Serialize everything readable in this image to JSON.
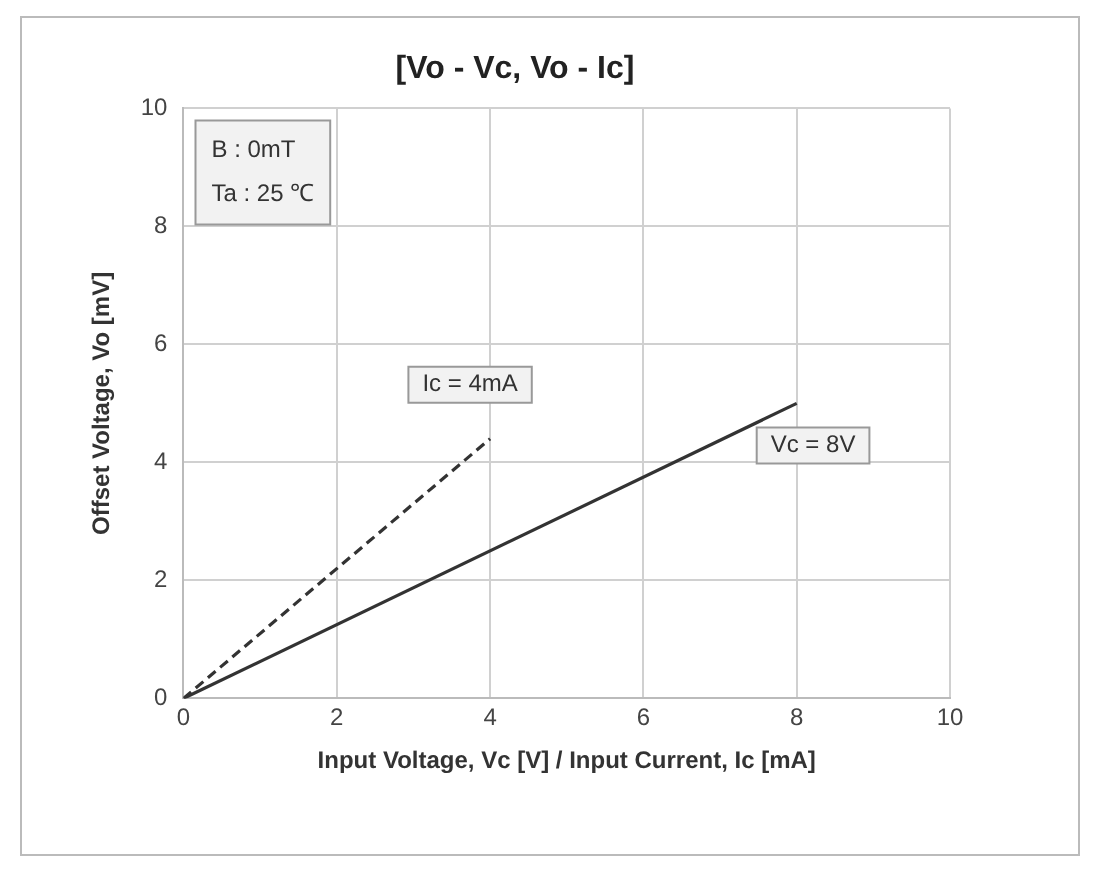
{
  "chart_data": {
    "type": "line",
    "title": "[Vo - Vc, Vo - Ic]",
    "xlabel": "Input Voltage, Vc [V] / Input Current, Ic [mA]",
    "ylabel": "Offset Voltage, Vo [mV]",
    "series": [
      {
        "name": "Ic = 4mA",
        "color": "#333333",
        "line_style": "dashed",
        "x": [
          0,
          4
        ],
        "values": [
          0,
          4.4
        ]
      },
      {
        "name": "Vc = 8V",
        "color": "#333333",
        "line_style": "solid",
        "x": [
          0,
          8
        ],
        "values": [
          0,
          5
        ]
      }
    ],
    "annotations": [
      "B : 0mT",
      "Ta : 25 ℃"
    ],
    "xlim": [
      0,
      10
    ],
    "xticks": [
      0,
      2,
      4,
      6,
      8,
      10
    ],
    "ylim": [
      0,
      10
    ],
    "yticks": [
      0,
      2,
      4,
      6,
      8,
      10
    ],
    "grid": true,
    "legend": false,
    "marker": "none"
  }
}
